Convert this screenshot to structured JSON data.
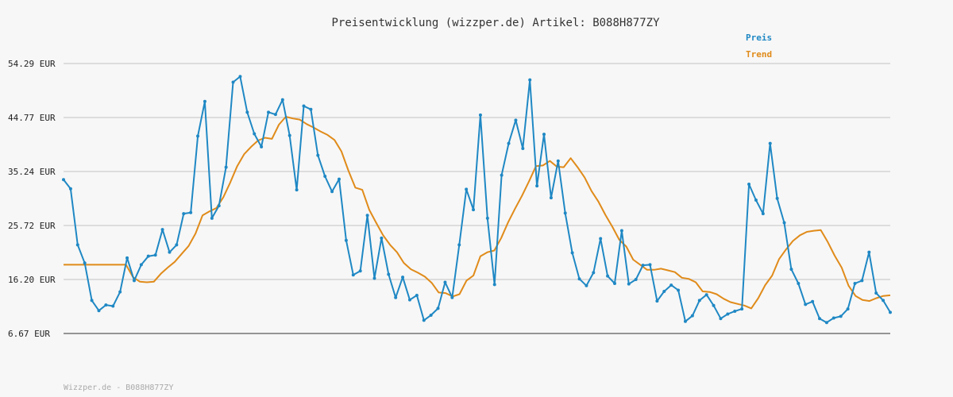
{
  "chart_data": {
    "type": "line",
    "title": "Preisentwicklung (wizzper.de) Artikel: B088H877ZY",
    "footer": "Wizzper.de - B088H877ZY",
    "ytick_labels": [
      "6.67 EUR",
      "16.20 EUR",
      "25.72 EUR",
      "35.24 EUR",
      "44.77 EUR",
      "54.29 EUR"
    ],
    "ylim": [
      6.67,
      54.29
    ],
    "grid": true,
    "legend_position": "top-right",
    "colors": {
      "preis": "#1f88c4",
      "trend": "#e08b1a",
      "grid": "#dddddd",
      "axis": "#333333"
    },
    "series": [
      {
        "name": "Preis",
        "values": [
          33.8,
          32.2,
          22.3,
          19.1,
          12.5,
          10.7,
          11.7,
          11.5,
          14.0,
          20.0,
          16.0,
          18.8,
          20.3,
          20.5,
          25.0,
          21.0,
          22.3,
          27.8,
          28.0,
          41.5,
          47.6,
          27.0,
          29.2,
          36.0,
          51.0,
          52.0,
          45.7,
          41.9,
          39.6,
          45.7,
          45.3,
          47.9,
          41.6,
          32.0,
          46.8,
          46.2,
          38.1,
          34.4,
          31.7,
          33.9,
          23.1,
          17.0,
          17.7,
          27.5,
          16.4,
          23.5,
          17.1,
          13.0,
          16.6,
          12.6,
          13.4,
          9.0,
          9.9,
          11.1,
          15.7,
          13.0,
          22.3,
          32.1,
          28.5,
          45.2,
          27.0,
          15.3,
          34.6,
          40.2,
          44.3,
          39.3,
          51.4,
          32.7,
          41.8,
          30.6,
          37.1,
          27.9,
          20.9,
          16.3,
          15.1,
          17.4,
          23.4,
          16.8,
          15.5,
          24.8,
          15.4,
          16.2,
          18.7,
          18.8,
          12.4,
          14.1,
          15.2,
          14.3,
          8.8,
          9.8,
          12.5,
          13.5,
          11.6,
          9.3,
          10.1,
          10.6,
          11.0,
          33.0,
          30.2,
          27.8,
          40.2,
          30.5,
          26.2,
          18.0,
          15.5,
          11.8,
          12.3,
          9.3,
          8.6,
          9.4,
          9.7,
          11.0,
          15.5,
          16.0,
          21.0,
          13.8,
          12.5,
          10.4
        ]
      },
      {
        "name": "Trend",
        "values": [
          18.8,
          18.8,
          18.8,
          18.8,
          18.8,
          18.8,
          18.8,
          18.8,
          18.8,
          18.8,
          16.6,
          15.8,
          15.7,
          15.8,
          17.2,
          18.3,
          19.3,
          20.7,
          22.1,
          24.3,
          27.5,
          28.2,
          28.8,
          30.7,
          33.3,
          36.2,
          38.3,
          39.6,
          40.7,
          41.2,
          41.0,
          43.5,
          44.9,
          44.6,
          44.4,
          43.6,
          43.0,
          42.3,
          41.7,
          40.8,
          38.8,
          35.4,
          32.4,
          32.0,
          28.5,
          26.2,
          24.0,
          22.3,
          21.0,
          19.1,
          18.0,
          17.4,
          16.7,
          15.6,
          13.9,
          13.8,
          13.2,
          13.6,
          16.0,
          16.9,
          20.3,
          21.0,
          21.3,
          23.5,
          26.3,
          28.7,
          31.0,
          33.5,
          36.2,
          36.3,
          37.1,
          36.1,
          36.0,
          37.6,
          36.0,
          34.2,
          31.8,
          29.9,
          27.6,
          25.5,
          23.2,
          22.0,
          19.7,
          18.8,
          17.9,
          17.9,
          18.1,
          17.8,
          17.5,
          16.5,
          16.3,
          15.7,
          14.1,
          14.0,
          13.6,
          12.8,
          12.2,
          11.9,
          11.6,
          11.1,
          12.9,
          15.2,
          16.9,
          19.8,
          21.5,
          23.0,
          24.0,
          24.6,
          24.8,
          24.9,
          22.8,
          20.4,
          18.3,
          15.1,
          13.3,
          12.6,
          12.4,
          12.9,
          13.3,
          13.4
        ]
      }
    ]
  }
}
